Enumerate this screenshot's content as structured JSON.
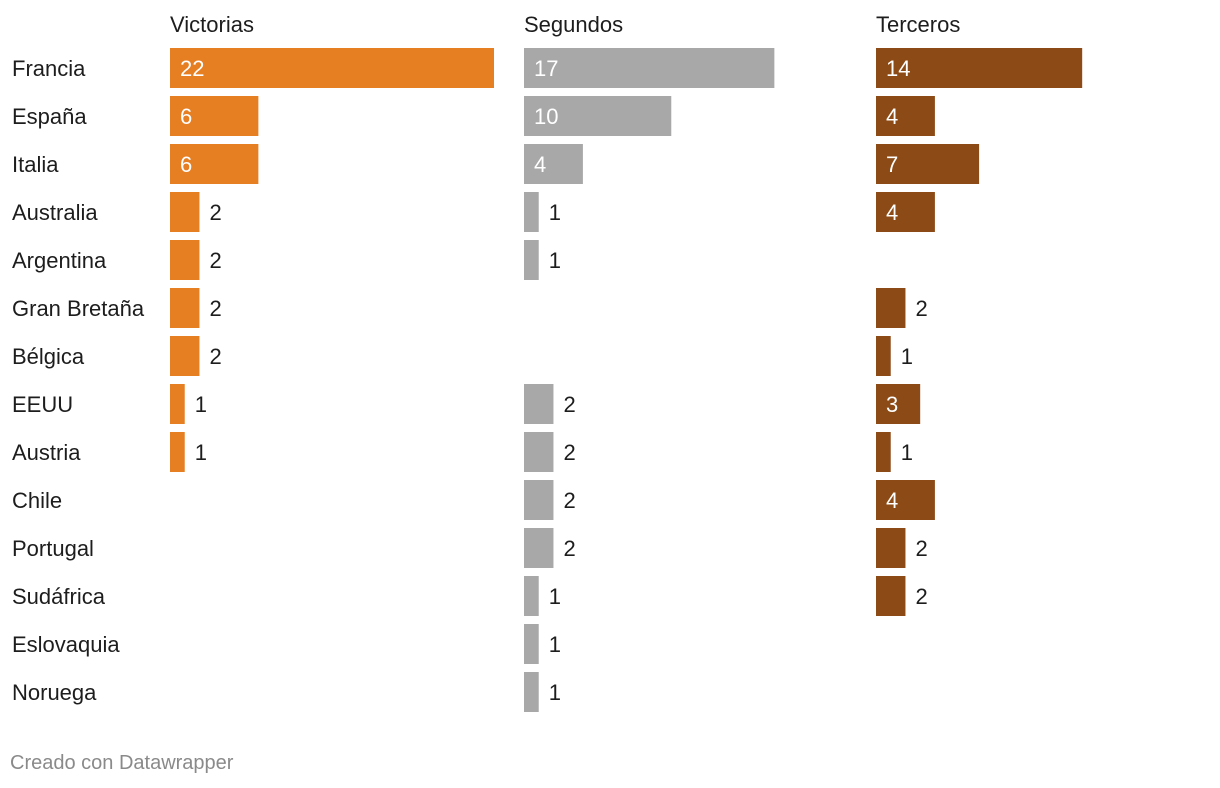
{
  "chart_data": {
    "type": "bar",
    "categories": [
      "Francia",
      "España",
      "Italia",
      "Australia",
      "Argentina",
      "Gran Bretaña",
      "Bélgica",
      "EEUU",
      "Austria",
      "Chile",
      "Portugal",
      "Sudáfrica",
      "Eslovaquia",
      "Noruega"
    ],
    "series": [
      {
        "name": "Victorias",
        "color": "#e67e22",
        "values": [
          22,
          6,
          6,
          2,
          2,
          2,
          2,
          1,
          1,
          null,
          null,
          null,
          null,
          null
        ]
      },
      {
        "name": "Segundos",
        "color": "#a8a8a8",
        "values": [
          17,
          10,
          4,
          1,
          1,
          null,
          null,
          2,
          2,
          2,
          2,
          1,
          1,
          1
        ]
      },
      {
        "name": "Terceros",
        "color": "#8b4a16",
        "values": [
          14,
          4,
          7,
          4,
          null,
          2,
          1,
          3,
          1,
          4,
          2,
          2,
          null,
          null
        ]
      }
    ],
    "scale_max": 22,
    "inside_label_threshold": 3
  },
  "credit": "Creado con Datawrapper"
}
